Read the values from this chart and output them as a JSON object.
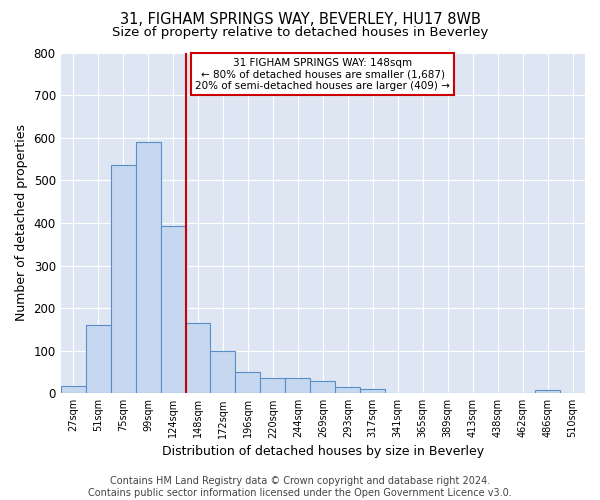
{
  "title": "31, FIGHAM SPRINGS WAY, BEVERLEY, HU17 8WB",
  "subtitle": "Size of property relative to detached houses in Beverley",
  "xlabel": "Distribution of detached houses by size in Beverley",
  "ylabel": "Number of detached properties",
  "footer": "Contains HM Land Registry data © Crown copyright and database right 2024.\nContains public sector information licensed under the Open Government Licence v3.0.",
  "bar_labels": [
    "27sqm",
    "51sqm",
    "75sqm",
    "99sqm",
    "124sqm",
    "148sqm",
    "172sqm",
    "196sqm",
    "220sqm",
    "244sqm",
    "269sqm",
    "293sqm",
    "317sqm",
    "341sqm",
    "365sqm",
    "389sqm",
    "413sqm",
    "438sqm",
    "462sqm",
    "486sqm",
    "510sqm"
  ],
  "bar_values": [
    18,
    160,
    537,
    590,
    393,
    165,
    100,
    50,
    37,
    35,
    30,
    15,
    11,
    0,
    0,
    0,
    0,
    0,
    0,
    7,
    0
  ],
  "bar_color": "#c5d8ef",
  "bar_edge_color": "#5b8dc8",
  "vline_color": "#cc0000",
  "ylim": [
    0,
    800
  ],
  "annotation_text": "31 FIGHAM SPRINGS WAY: 148sqm\n← 80% of detached houses are smaller (1,687)\n20% of semi-detached houses are larger (409) →",
  "annotation_box_color": "#cc0000",
  "bg_color": "#dde6f2",
  "title_fontsize": 10.5,
  "subtitle_fontsize": 9.5,
  "footer_fontsize": 7,
  "ylabel_fontsize": 9,
  "xlabel_fontsize": 9
}
